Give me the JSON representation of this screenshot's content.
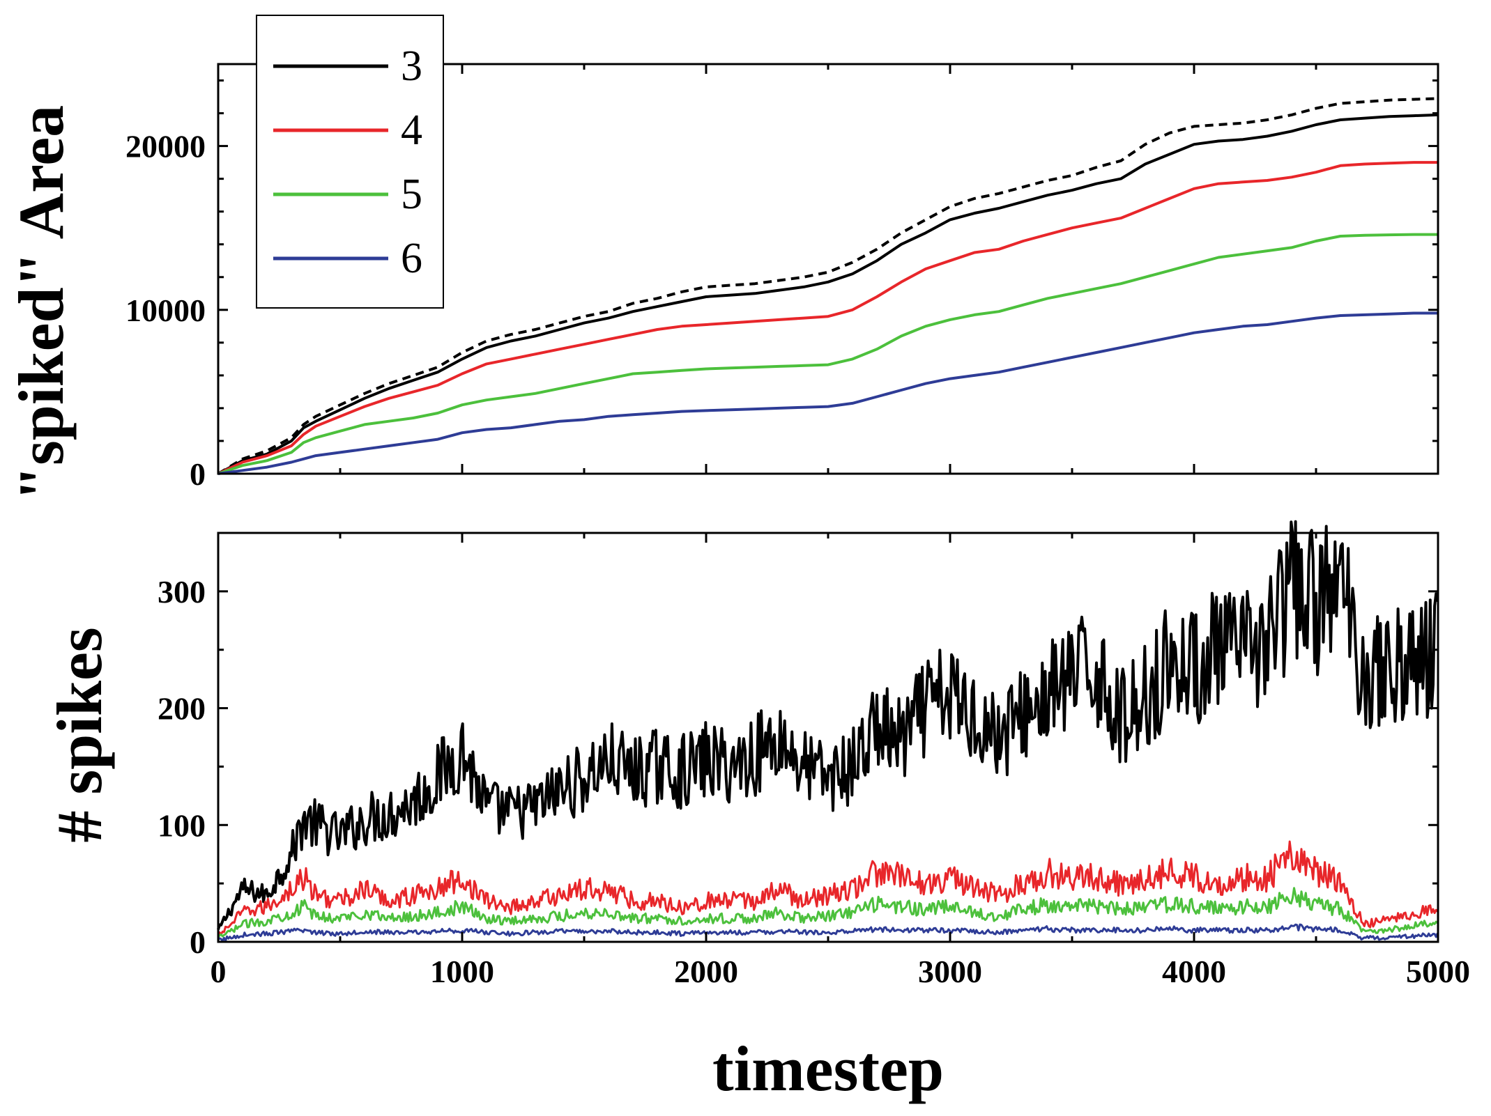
{
  "chart_data": [
    {
      "type": "line",
      "panel": "top",
      "title": "",
      "xlabel": "",
      "ylabel": "\"spiked\" Area",
      "xlim": [
        0,
        5000
      ],
      "ylim": [
        0,
        25000
      ],
      "xticks": [
        0,
        1000,
        2000,
        3000,
        4000,
        5000
      ],
      "yticks": [
        0,
        10000,
        20000
      ],
      "ytick_labels": [
        "0",
        "10000",
        "20000"
      ],
      "legend": {
        "position": "top-left",
        "entries": [
          "3",
          "4",
          "5",
          "6"
        ]
      },
      "x": [
        0,
        100,
        200,
        300,
        350,
        400,
        500,
        600,
        700,
        800,
        900,
        1000,
        1100,
        1200,
        1300,
        1400,
        1500,
        1600,
        1700,
        1800,
        1900,
        2000,
        2100,
        2200,
        2300,
        2400,
        2500,
        2600,
        2700,
        2800,
        2900,
        3000,
        3100,
        3200,
        3300,
        3400,
        3500,
        3600,
        3700,
        3800,
        3900,
        4000,
        4100,
        4200,
        4300,
        4400,
        4500,
        4600,
        4700,
        4800,
        4900,
        5000
      ],
      "series": [
        {
          "name": "3",
          "color": "#000000",
          "dash": "solid",
          "values": [
            0,
            800,
            1200,
            2000,
            2800,
            3200,
            3900,
            4600,
            5200,
            5700,
            6200,
            7000,
            7700,
            8100,
            8400,
            8800,
            9200,
            9500,
            9900,
            10200,
            10500,
            10800,
            10900,
            11000,
            11200,
            11400,
            11700,
            12200,
            13000,
            14000,
            14700,
            15500,
            15900,
            16200,
            16600,
            17000,
            17300,
            17700,
            18000,
            18900,
            19500,
            20100,
            20300,
            20400,
            20600,
            20900,
            21300,
            21600,
            21700,
            21800,
            21850,
            21900
          ]
        },
        {
          "name": "3 (dashed)",
          "color": "#000000",
          "dash": "dashed",
          "values": [
            0,
            900,
            1400,
            2200,
            3000,
            3500,
            4200,
            4900,
            5500,
            6000,
            6500,
            7400,
            8100,
            8500,
            8800,
            9200,
            9600,
            9900,
            10400,
            10700,
            11100,
            11400,
            11500,
            11600,
            11800,
            12000,
            12300,
            12900,
            13700,
            14700,
            15500,
            16300,
            16800,
            17100,
            17500,
            17900,
            18200,
            18700,
            19100,
            20100,
            20800,
            21200,
            21300,
            21400,
            21600,
            21900,
            22300,
            22600,
            22700,
            22800,
            22850,
            22900
          ]
        },
        {
          "name": "4",
          "color": "#e8262a",
          "dash": "solid",
          "values": [
            0,
            700,
            1100,
            1700,
            2400,
            2900,
            3500,
            4100,
            4600,
            5000,
            5400,
            6100,
            6700,
            7000,
            7300,
            7600,
            7900,
            8200,
            8500,
            8800,
            9000,
            9100,
            9200,
            9300,
            9400,
            9500,
            9600,
            10000,
            10800,
            11700,
            12500,
            13000,
            13500,
            13700,
            14200,
            14600,
            15000,
            15300,
            15600,
            16200,
            16800,
            17400,
            17700,
            17800,
            17900,
            18100,
            18400,
            18800,
            18900,
            18950,
            19000,
            19000
          ]
        },
        {
          "name": "5",
          "color": "#4cc03c",
          "dash": "solid",
          "values": [
            0,
            500,
            800,
            1300,
            1900,
            2200,
            2600,
            3000,
            3200,
            3400,
            3700,
            4200,
            4500,
            4700,
            4900,
            5200,
            5500,
            5800,
            6100,
            6200,
            6300,
            6400,
            6450,
            6500,
            6550,
            6600,
            6650,
            7000,
            7600,
            8400,
            9000,
            9400,
            9700,
            9900,
            10300,
            10700,
            11000,
            11300,
            11600,
            12000,
            12400,
            12800,
            13200,
            13400,
            13600,
            13800,
            14200,
            14500,
            14550,
            14580,
            14600,
            14600
          ]
        },
        {
          "name": "6",
          "color": "#2e3c96",
          "dash": "solid",
          "values": [
            0,
            200,
            400,
            700,
            900,
            1100,
            1300,
            1500,
            1700,
            1900,
            2100,
            2500,
            2700,
            2800,
            3000,
            3200,
            3300,
            3500,
            3600,
            3700,
            3800,
            3850,
            3900,
            3950,
            4000,
            4050,
            4100,
            4300,
            4700,
            5100,
            5500,
            5800,
            6000,
            6200,
            6500,
            6800,
            7100,
            7400,
            7700,
            8000,
            8300,
            8600,
            8800,
            9000,
            9100,
            9300,
            9500,
            9650,
            9700,
            9750,
            9800,
            9800
          ]
        }
      ]
    },
    {
      "type": "line",
      "panel": "bottom",
      "title": "",
      "xlabel": "timestep",
      "ylabel": "# spikes",
      "xlim": [
        0,
        5000
      ],
      "ylim": [
        0,
        350
      ],
      "xticks": [
        0,
        1000,
        2000,
        3000,
        4000,
        5000
      ],
      "xtick_labels": [
        "0",
        "1000",
        "2000",
        "3000",
        "4000",
        "5000"
      ],
      "yticks": [
        0,
        100,
        200,
        300
      ],
      "ytick_labels": [
        "0",
        "100",
        "200",
        "300"
      ],
      "x": [
        0,
        100,
        200,
        300,
        350,
        400,
        500,
        600,
        700,
        800,
        900,
        1000,
        1100,
        1200,
        1300,
        1400,
        1500,
        1600,
        1700,
        1800,
        1900,
        2000,
        2100,
        2200,
        2300,
        2400,
        2500,
        2600,
        2700,
        2800,
        2900,
        3000,
        3100,
        3200,
        3300,
        3400,
        3500,
        3600,
        3700,
        3800,
        3900,
        4000,
        4100,
        4200,
        4300,
        4400,
        4500,
        4600,
        4700,
        4800,
        4900,
        5000
      ],
      "series": [
        {
          "name": "3",
          "color": "#000000",
          "values": [
            10,
            45,
            40,
            75,
            105,
            100,
            90,
            105,
            110,
            120,
            140,
            165,
            115,
            110,
            115,
            130,
            140,
            155,
            145,
            150,
            145,
            155,
            150,
            160,
            175,
            150,
            140,
            150,
            185,
            170,
            200,
            210,
            195,
            175,
            195,
            210,
            225,
            235,
            190,
            210,
            240,
            235,
            250,
            245,
            260,
            300,
            290,
            305,
            230,
            235,
            240,
            250
          ]
        },
        {
          "name": "4",
          "color": "#e8262a",
          "values": [
            5,
            25,
            30,
            45,
            55,
            40,
            35,
            45,
            35,
            40,
            45,
            55,
            35,
            30,
            35,
            40,
            45,
            45,
            35,
            35,
            30,
            35,
            35,
            35,
            45,
            35,
            40,
            45,
            60,
            55,
            50,
            55,
            45,
            40,
            50,
            60,
            55,
            55,
            50,
            55,
            60,
            55,
            50,
            55,
            55,
            75,
            60,
            50,
            15,
            20,
            25,
            30
          ]
        },
        {
          "name": "5",
          "color": "#4cc03c",
          "values": [
            3,
            15,
            18,
            25,
            30,
            22,
            20,
            25,
            20,
            22,
            25,
            30,
            20,
            18,
            20,
            22,
            25,
            25,
            20,
            20,
            18,
            20,
            20,
            20,
            25,
            20,
            22,
            25,
            32,
            30,
            28,
            30,
            25,
            22,
            28,
            32,
            30,
            30,
            28,
            30,
            32,
            30,
            28,
            30,
            30,
            40,
            32,
            28,
            8,
            10,
            14,
            16
          ]
        },
        {
          "name": "6",
          "color": "#2e3c96",
          "values": [
            1,
            6,
            7,
            9,
            10,
            8,
            7,
            9,
            8,
            8,
            9,
            10,
            8,
            7,
            8,
            9,
            9,
            9,
            8,
            8,
            7,
            8,
            8,
            8,
            9,
            8,
            8,
            9,
            11,
            10,
            10,
            10,
            9,
            8,
            10,
            11,
            10,
            10,
            10,
            10,
            11,
            10,
            10,
            10,
            10,
            13,
            11,
            10,
            3,
            4,
            5,
            6
          ]
        }
      ]
    }
  ]
}
